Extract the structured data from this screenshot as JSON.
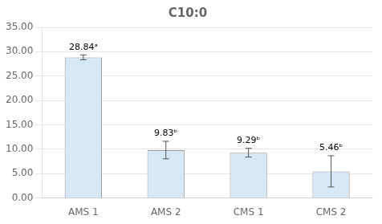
{
  "chart_data": {
    "type": "bar",
    "title": "C10:0",
    "categories": [
      "AMS 1",
      "AMS 2",
      "CMS 1",
      "CMS 2"
    ],
    "values": [
      28.84,
      9.83,
      9.29,
      5.46
    ],
    "errors": [
      0.5,
      1.8,
      0.9,
      3.2
    ],
    "value_labels": [
      "28.84ᵃ",
      "9.83ᵇ",
      "9.29ᵇ",
      "5.46ᵇ"
    ],
    "data_labels": true,
    "color": "#d6e8f5",
    "ylim": [
      0,
      35
    ],
    "yticks": [
      {
        "value": 0,
        "label": "0.00"
      },
      {
        "value": 5,
        "label": "5.00"
      },
      {
        "value": 10,
        "label": "10.00"
      },
      {
        "value": 15,
        "label": "15.00"
      },
      {
        "value": 20,
        "label": "20.00"
      },
      {
        "value": 25,
        "label": "25.00"
      },
      {
        "value": 30,
        "label": "30.00"
      },
      {
        "value": 35,
        "label": "35.00"
      }
    ],
    "grid": true
  }
}
